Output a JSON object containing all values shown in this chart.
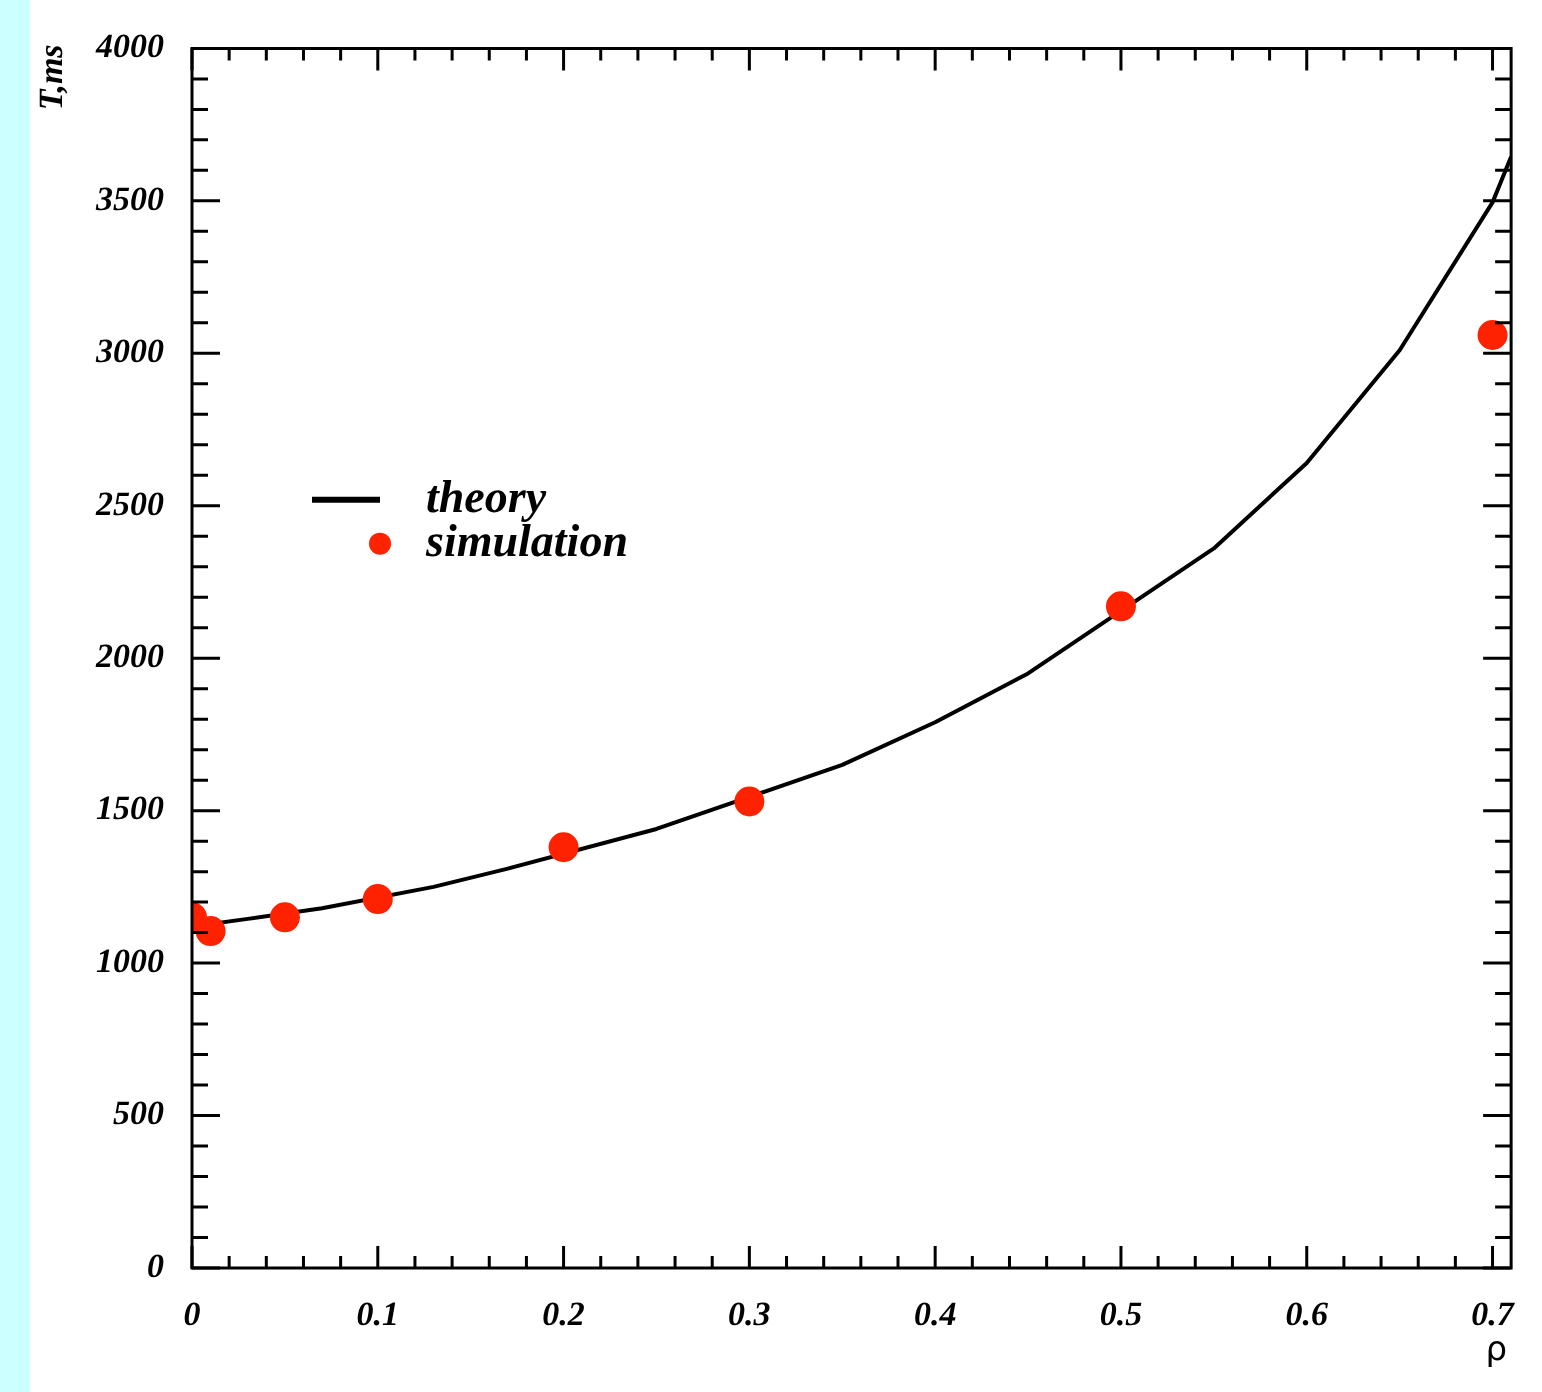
{
  "chart_data": {
    "type": "scatter",
    "xlabel": "ρ",
    "ylabel": "T,ms",
    "xlim": [
      0,
      0.71
    ],
    "ylim": [
      0,
      4000
    ],
    "xticks": [
      0,
      {
        "value": 0.02,
        "label": null
      },
      {
        "value": 0.04,
        "label": null
      },
      {
        "value": 0.06,
        "label": null
      },
      {
        "value": 0.08,
        "label": null
      },
      0.1,
      {
        "value": 0.12,
        "label": null
      },
      {
        "value": 0.14,
        "label": null
      },
      {
        "value": 0.16,
        "label": null
      },
      {
        "value": 0.18,
        "label": null
      },
      0.2,
      {
        "value": 0.22,
        "label": null
      },
      {
        "value": 0.24,
        "label": null
      },
      {
        "value": 0.26,
        "label": null
      },
      {
        "value": 0.28,
        "label": null
      },
      0.3,
      {
        "value": 0.32,
        "label": null
      },
      {
        "value": 0.34,
        "label": null
      },
      {
        "value": 0.36,
        "label": null
      },
      {
        "value": 0.38,
        "label": null
      },
      0.4,
      {
        "value": 0.42,
        "label": null
      },
      {
        "value": 0.44,
        "label": null
      },
      {
        "value": 0.46,
        "label": null
      },
      {
        "value": 0.48,
        "label": null
      },
      0.5,
      {
        "value": 0.52,
        "label": null
      },
      {
        "value": 0.54,
        "label": null
      },
      {
        "value": 0.56,
        "label": null
      },
      {
        "value": 0.58,
        "label": null
      },
      0.6,
      {
        "value": 0.62,
        "label": null
      },
      {
        "value": 0.64,
        "label": null
      },
      {
        "value": 0.66,
        "label": null
      },
      {
        "value": 0.68,
        "label": null
      },
      0.7
    ],
    "yticks": [
      0,
      {
        "value": 100,
        "label": null
      },
      {
        "value": 200,
        "label": null
      },
      {
        "value": 300,
        "label": null
      },
      {
        "value": 400,
        "label": null
      },
      500,
      {
        "value": 600,
        "label": null
      },
      {
        "value": 700,
        "label": null
      },
      {
        "value": 800,
        "label": null
      },
      {
        "value": 900,
        "label": null
      },
      1000,
      {
        "value": 1100,
        "label": null
      },
      {
        "value": 1200,
        "label": null
      },
      {
        "value": 1300,
        "label": null
      },
      {
        "value": 1400,
        "label": null
      },
      1500,
      {
        "value": 1600,
        "label": null
      },
      {
        "value": 1700,
        "label": null
      },
      {
        "value": 1800,
        "label": null
      },
      {
        "value": 1900,
        "label": null
      },
      2000,
      {
        "value": 2100,
        "label": null
      },
      {
        "value": 2200,
        "label": null
      },
      {
        "value": 2300,
        "label": null
      },
      {
        "value": 2400,
        "label": null
      },
      2500,
      {
        "value": 2600,
        "label": null
      },
      {
        "value": 2700,
        "label": null
      },
      {
        "value": 2800,
        "label": null
      },
      {
        "value": 2900,
        "label": null
      },
      3000,
      {
        "value": 3100,
        "label": null
      },
      {
        "value": 3200,
        "label": null
      },
      {
        "value": 3300,
        "label": null
      },
      {
        "value": 3400,
        "label": null
      },
      3500,
      {
        "value": 3600,
        "label": null
      },
      {
        "value": 3700,
        "label": null
      },
      {
        "value": 3800,
        "label": null
      },
      {
        "value": 3900,
        "label": null
      },
      4000
    ],
    "grid": false,
    "legend": "left",
    "series": [
      {
        "name": "theory",
        "type": "line",
        "color": "#000000",
        "marker": "none",
        "line_style": "solid",
        "x": [
          0,
          0.03,
          0.07,
          0.13,
          0.17,
          0.25,
          0.35,
          0.4,
          0.45,
          0.55,
          0.6,
          0.65,
          0.7,
          0.71
        ],
        "values": [
          1120,
          1145,
          1180,
          1250,
          1310,
          1440,
          1650,
          1790,
          1950,
          2360,
          2640,
          3010,
          3495,
          3645
        ]
      },
      {
        "name": "simulation",
        "type": "scatter",
        "color": "#ff2200",
        "marker": "circle",
        "x": [
          0,
          0.01,
          0.05,
          0.1,
          0.2,
          0.3,
          0.5,
          0.7
        ],
        "values": [
          1150,
          1105,
          1150,
          1210,
          1380,
          1530,
          2170,
          3060
        ]
      }
    ]
  }
}
